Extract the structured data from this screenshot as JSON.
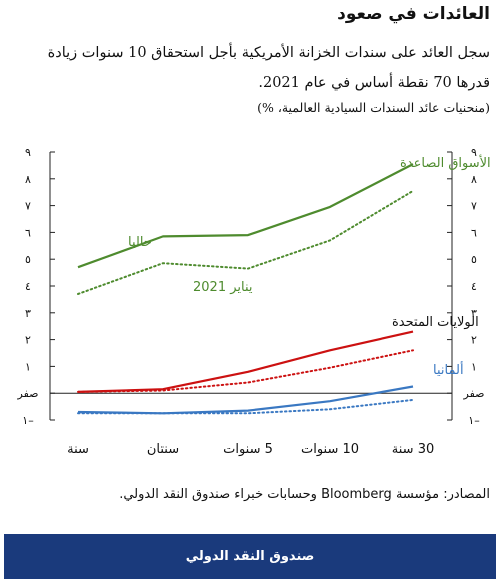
{
  "title": "العائدات في صعود",
  "subtitle": "سجل العائد على سندات الخزانة الأمريكية بأجل استحقاق 10 سنوات زيادة قدرها 70 نقطة أساس في عام 2021.",
  "note": "(منحنيات عائد السندات السيادية العالمية، %)",
  "source": "المصادر: مؤسسة Bloomberg وحسابات خبراء صندوق النقد الدولي.",
  "footer": "صندوق النقد الدولي",
  "colors": {
    "em": "#4e8b2e",
    "us": "#cc1111",
    "de": "#3a78c2",
    "axis": "#222222",
    "footer": "#1a3a7c"
  },
  "chart_data": {
    "type": "line",
    "categories": [
      "سنة",
      "سنتان",
      "5 سنوات",
      "10 سنوات",
      "30 سنة"
    ],
    "ylim": [
      -1,
      9
    ],
    "y_ticks": [
      {
        "v": 9,
        "label": "٩"
      },
      {
        "v": 8,
        "label": "٨"
      },
      {
        "v": 7,
        "label": "٧"
      },
      {
        "v": 6,
        "label": "٦"
      },
      {
        "v": 5,
        "label": "٥"
      },
      {
        "v": 4,
        "label": "٤"
      },
      {
        "v": 3,
        "label": "٣"
      },
      {
        "v": 2,
        "label": "٢"
      },
      {
        "v": 1,
        "label": "١"
      },
      {
        "v": 0,
        "label": "صفر"
      },
      {
        "v": -1,
        "label": "١–"
      }
    ],
    "series": [
      {
        "key": "em_now",
        "group": "em",
        "style": "solid",
        "values": [
          4.7,
          5.85,
          5.9,
          6.95,
          8.55
        ]
      },
      {
        "key": "em_jan",
        "group": "em",
        "style": "dotted",
        "values": [
          3.7,
          4.85,
          4.65,
          5.7,
          7.55
        ]
      },
      {
        "key": "us_now",
        "group": "us",
        "style": "solid",
        "values": [
          0.05,
          0.15,
          0.8,
          1.6,
          2.3
        ]
      },
      {
        "key": "us_jan",
        "group": "us",
        "style": "dotted",
        "values": [
          0.05,
          0.1,
          0.4,
          0.95,
          1.6
        ]
      },
      {
        "key": "de_now",
        "group": "de",
        "style": "solid",
        "values": [
          -0.7,
          -0.75,
          -0.65,
          -0.3,
          0.25
        ]
      },
      {
        "key": "de_jan",
        "group": "de",
        "style": "dotted",
        "values": [
          -0.75,
          -0.75,
          -0.75,
          -0.6,
          -0.25
        ]
      }
    ],
    "labels": {
      "em": "الأسواق الصاعدة",
      "now": "حاليا",
      "jan": "يناير 2021",
      "us": "الولايات المتحدة",
      "de": "ألمانيا"
    },
    "grid": false
  }
}
